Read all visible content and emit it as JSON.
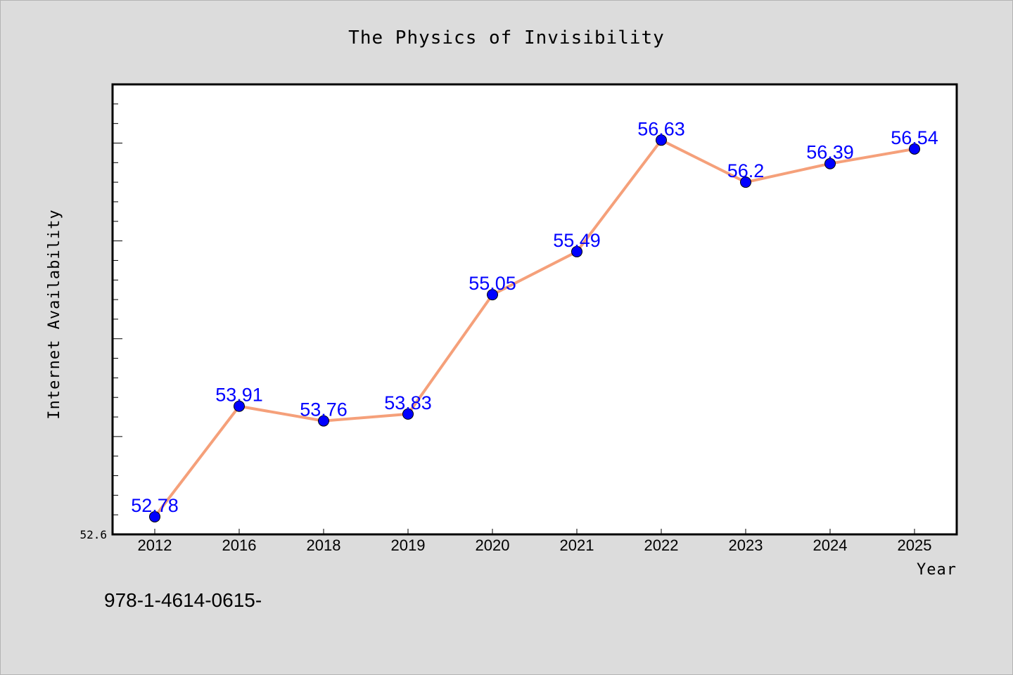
{
  "chart_data": {
    "type": "line",
    "title": "The Physics of Invisibility",
    "xlabel": "Year",
    "ylabel": "Internet Availability",
    "categories": [
      "2012",
      "2016",
      "2018",
      "2019",
      "2020",
      "2021",
      "2022",
      "2023",
      "2024",
      "2025"
    ],
    "series": [
      {
        "values": [
          52.78,
          53.91,
          53.76,
          53.83,
          55.05,
          55.49,
          56.63,
          56.2,
          56.39,
          56.54
        ],
        "labels": [
          "52.78",
          "53.91",
          "53.76",
          "53.83",
          "55.05",
          "55.49",
          "56.63",
          "56.2",
          "56.39",
          "56.54"
        ]
      }
    ],
    "y_tick_labels": [
      "52.6"
    ],
    "ylim": [
      52.6,
      57.2
    ],
    "grid": false,
    "line_color": "#f5a07a",
    "marker_color": "#0000ff",
    "label_color": "#0000ff"
  },
  "footer": {
    "text": "978-1-4614-0615-"
  },
  "colors": {
    "background": "#dcdcdc",
    "plot_background": "#ffffff"
  }
}
